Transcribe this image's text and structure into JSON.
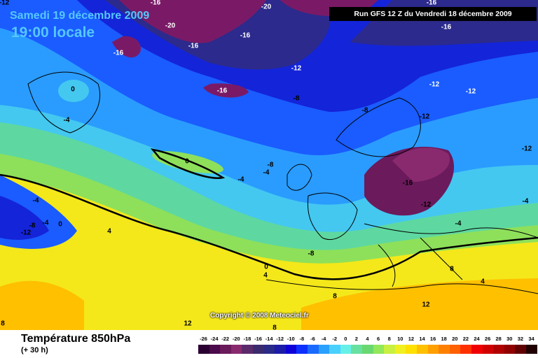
{
  "header": {
    "date": "Samedi 19 décembre 2009",
    "time": "19:00 locale",
    "run": "Run GFS 12 Z du Vendredi 18 décembre 2009"
  },
  "footer": {
    "title": "Température 850hPa",
    "subtitle": "(+ 30 h)",
    "copyright": "Copyright © 2008 Meteociel.fr"
  },
  "legend": {
    "ticks": [
      "-26",
      "-24",
      "-22",
      "-20",
      "-18",
      "-16",
      "-14",
      "-12",
      "-10",
      "-8",
      "-6",
      "-4",
      "-2",
      "0",
      "2",
      "4",
      "6",
      "8",
      "10",
      "12",
      "14",
      "16",
      "18",
      "20",
      "22",
      "24",
      "26",
      "28",
      "30",
      "32",
      "34"
    ],
    "colors": [
      "#2a0033",
      "#4b0a4b",
      "#6b1a5c",
      "#8a2a6e",
      "#5b2a6a",
      "#3b2a6e",
      "#2a2a88",
      "#1c1ca8",
      "#0e00d8",
      "#0c30ff",
      "#1a6aff",
      "#2aa0ff",
      "#4ad0ff",
      "#66f0e8",
      "#68e0a0",
      "#6ad870",
      "#92e85a",
      "#c8f040",
      "#f0f020",
      "#ffe000",
      "#ffc000",
      "#ffa000",
      "#ff8000",
      "#ff6000",
      "#ff3000",
      "#f00000",
      "#d00000",
      "#b00000",
      "#900000",
      "#600000",
      "#200000"
    ]
  },
  "map_labels": [
    {
      "text": "-12",
      "lon": 6,
      "lat": 4
    },
    {
      "text": "-16",
      "lon": 222,
      "lat": 4
    },
    {
      "text": "-16",
      "lon": 616,
      "lat": 4
    },
    {
      "text": "-20",
      "lon": 380,
      "lat": 10
    },
    {
      "text": "-20",
      "lon": 243,
      "lat": 37
    },
    {
      "text": "-16",
      "lon": 637,
      "lat": 39
    },
    {
      "text": "-16",
      "lon": 350,
      "lat": 51
    },
    {
      "text": "-16",
      "lon": 276,
      "lat": 66
    },
    {
      "text": "-16",
      "lon": 169,
      "lat": 76
    },
    {
      "text": "-12",
      "lon": 423,
      "lat": 98
    },
    {
      "text": "0",
      "lon": 104,
      "lat": 128
    },
    {
      "text": "-16",
      "lon": 317,
      "lat": 130
    },
    {
      "text": "-12",
      "lon": 620,
      "lat": 121
    },
    {
      "text": "-12",
      "lon": 672,
      "lat": 131
    },
    {
      "text": "-8",
      "lon": 423,
      "lat": 141
    },
    {
      "text": "-8",
      "lon": 521,
      "lat": 158
    },
    {
      "text": "-12",
      "lon": 606,
      "lat": 167
    },
    {
      "text": "-4",
      "lon": 95,
      "lat": 172
    },
    {
      "text": "-12",
      "lon": 752,
      "lat": 213
    },
    {
      "text": "0",
      "lon": 267,
      "lat": 231
    },
    {
      "text": "-8",
      "lon": 386,
      "lat": 236
    },
    {
      "text": "-4",
      "lon": 380,
      "lat": 247
    },
    {
      "text": "-4",
      "lon": 344,
      "lat": 257
    },
    {
      "text": "-16",
      "lon": 582,
      "lat": 262
    },
    {
      "text": "-4",
      "lon": 51,
      "lat": 287
    },
    {
      "text": "-12",
      "lon": 608,
      "lat": 293
    },
    {
      "text": "-4",
      "lon": 750,
      "lat": 288
    },
    {
      "text": "-8",
      "lon": 46,
      "lat": 323
    },
    {
      "text": "-4",
      "lon": 65,
      "lat": 319
    },
    {
      "text": "0",
      "lon": 86,
      "lat": 321
    },
    {
      "text": "-4",
      "lon": 654,
      "lat": 320
    },
    {
      "text": "4",
      "lon": 156,
      "lat": 331
    },
    {
      "text": "-12",
      "lon": 37,
      "lat": 333
    },
    {
      "text": "-8",
      "lon": 444,
      "lat": 363
    },
    {
      "text": "0",
      "lon": 380,
      "lat": 382
    },
    {
      "text": "4",
      "lon": 379,
      "lat": 394
    },
    {
      "text": "8",
      "lon": 645,
      "lat": 385
    },
    {
      "text": "4",
      "lon": 689,
      "lat": 403
    },
    {
      "text": "8",
      "lon": 478,
      "lat": 424
    },
    {
      "text": "12",
      "lon": 608,
      "lat": 436
    },
    {
      "text": "12",
      "lon": 268,
      "lat": 463
    },
    {
      "text": "8",
      "lon": 392,
      "lat": 469
    },
    {
      "text": "8",
      "lon": 4,
      "lat": 463
    }
  ]
}
